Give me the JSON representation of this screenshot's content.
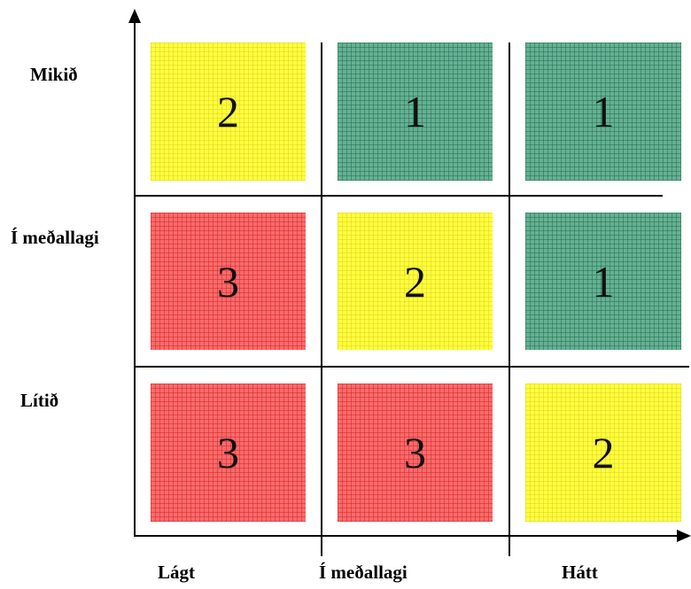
{
  "y_axis": {
    "labels": [
      "Mikið",
      "Í meðallagi",
      "Lítið"
    ]
  },
  "x_axis": {
    "labels": [
      "Lágt",
      "Í meðallagi",
      "Hátt"
    ]
  },
  "grid": {
    "rows": [
      [
        {
          "value": "2",
          "color": "yellow"
        },
        {
          "value": "1",
          "color": "green"
        },
        {
          "value": "1",
          "color": "green"
        }
      ],
      [
        {
          "value": "3",
          "color": "red"
        },
        {
          "value": "2",
          "color": "yellow"
        },
        {
          "value": "1",
          "color": "green"
        }
      ],
      [
        {
          "value": "3",
          "color": "red"
        },
        {
          "value": "3",
          "color": "red"
        },
        {
          "value": "2",
          "color": "yellow"
        }
      ]
    ]
  },
  "colors": {
    "yellow": "#ffff3b",
    "green": "#66b094",
    "red": "#f86b6b",
    "axis": "#000000"
  }
}
